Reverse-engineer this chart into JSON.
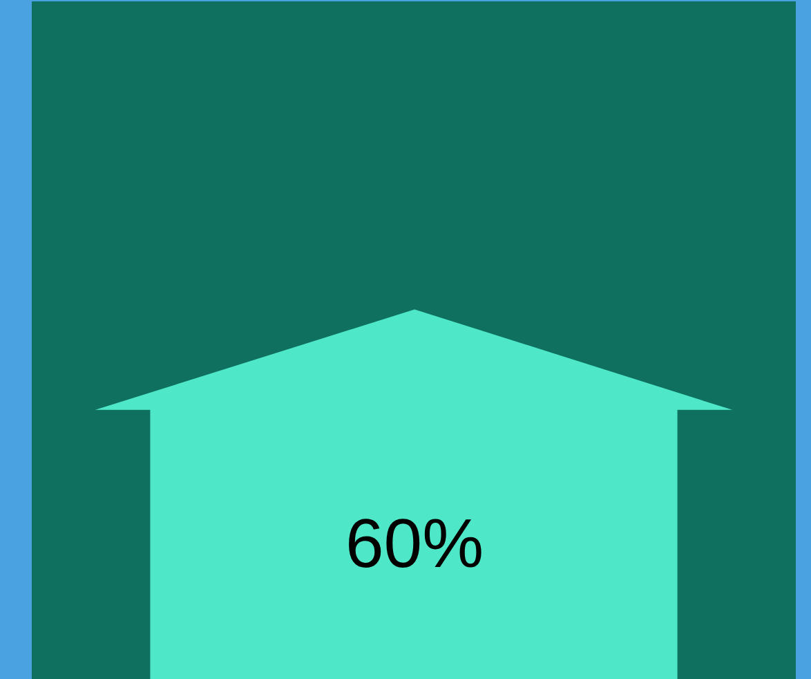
{
  "chart_data": {
    "type": "other",
    "values": [
      60
    ],
    "value_labels": [
      "60%"
    ],
    "color": "#4ee8c8"
  }
}
